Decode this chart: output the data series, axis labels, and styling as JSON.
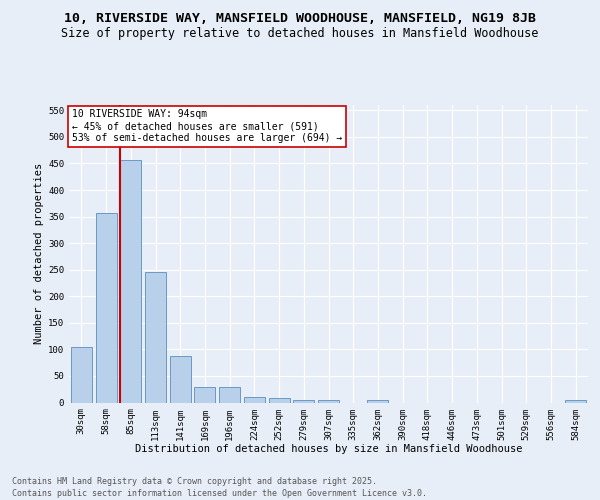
{
  "title_line1": "10, RIVERSIDE WAY, MANSFIELD WOODHOUSE, MANSFIELD, NG19 8JB",
  "title_line2": "Size of property relative to detached houses in Mansfield Woodhouse",
  "xlabel": "Distribution of detached houses by size in Mansfield Woodhouse",
  "ylabel": "Number of detached properties",
  "categories": [
    "30sqm",
    "58sqm",
    "85sqm",
    "113sqm",
    "141sqm",
    "169sqm",
    "196sqm",
    "224sqm",
    "252sqm",
    "279sqm",
    "307sqm",
    "335sqm",
    "362sqm",
    "390sqm",
    "418sqm",
    "446sqm",
    "473sqm",
    "501sqm",
    "529sqm",
    "556sqm",
    "584sqm"
  ],
  "values": [
    105,
    357,
    457,
    245,
    88,
    30,
    30,
    10,
    8,
    5,
    5,
    0,
    5,
    0,
    0,
    0,
    0,
    0,
    0,
    0,
    4
  ],
  "bar_color": "#b8d0ea",
  "bar_edge_color": "#5a8fc0",
  "vline_color": "#cc0000",
  "annotation_text": "10 RIVERSIDE WAY: 94sqm\n← 45% of detached houses are smaller (591)\n53% of semi-detached houses are larger (694) →",
  "annotation_box_color": "#ffffff",
  "annotation_box_edge": "#cc0000",
  "ylim": [
    0,
    560
  ],
  "yticks": [
    0,
    50,
    100,
    150,
    200,
    250,
    300,
    350,
    400,
    450,
    500,
    550
  ],
  "bg_color": "#e8eef8",
  "plot_bg_color": "#e8eef8",
  "grid_color": "#ffffff",
  "footer_line1": "Contains HM Land Registry data © Crown copyright and database right 2025.",
  "footer_line2": "Contains public sector information licensed under the Open Government Licence v3.0.",
  "title_fontsize": 9.5,
  "subtitle_fontsize": 8.5,
  "axis_label_fontsize": 7.5,
  "tick_fontsize": 6.5,
  "annotation_fontsize": 7,
  "footer_fontsize": 6
}
